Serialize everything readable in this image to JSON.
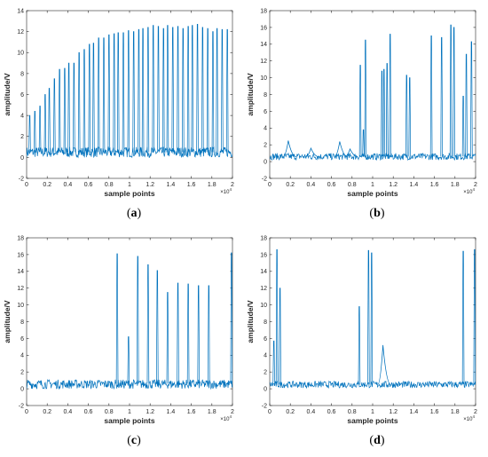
{
  "figure": {
    "accent_color": "#0072BD",
    "axis_color": "#262626"
  },
  "chart_data": [
    {
      "type": "line",
      "panel_label": "a",
      "caption": "(a)",
      "xlabel": "sample points",
      "ylabel": "amplitude/V",
      "x_exponent": "×10",
      "x_exponent_power": "4",
      "xlim": [
        0,
        2
      ],
      "ylim": [
        -2,
        14
      ],
      "xticks": [
        "0",
        "0.2",
        "0.4",
        "0.6",
        "0.8",
        "1",
        "1.2",
        "1.4",
        "1.6",
        "1.8",
        "2"
      ],
      "yticks": [
        "-2",
        "0",
        "2",
        "4",
        "6",
        "8",
        "10",
        "12",
        "14"
      ],
      "baseline": 0.5,
      "baseline_band": [
        0.0,
        1.0
      ],
      "spikes": [
        {
          "x": 0.03,
          "y": 4.0
        },
        {
          "x": 0.08,
          "y": 4.4
        },
        {
          "x": 0.13,
          "y": 4.9
        },
        {
          "x": 0.18,
          "y": 6.0
        },
        {
          "x": 0.22,
          "y": 6.6
        },
        {
          "x": 0.27,
          "y": 7.5
        },
        {
          "x": 0.32,
          "y": 8.4
        },
        {
          "x": 0.37,
          "y": 8.5
        },
        {
          "x": 0.41,
          "y": 9.0
        },
        {
          "x": 0.46,
          "y": 9.0
        },
        {
          "x": 0.51,
          "y": 10.0
        },
        {
          "x": 0.56,
          "y": 10.3
        },
        {
          "x": 0.61,
          "y": 10.8
        },
        {
          "x": 0.65,
          "y": 10.9
        },
        {
          "x": 0.7,
          "y": 11.4
        },
        {
          "x": 0.75,
          "y": 11.4
        },
        {
          "x": 0.8,
          "y": 11.7
        },
        {
          "x": 0.85,
          "y": 11.8
        },
        {
          "x": 0.89,
          "y": 11.9
        },
        {
          "x": 0.94,
          "y": 11.9
        },
        {
          "x": 0.99,
          "y": 12.1
        },
        {
          "x": 1.04,
          "y": 12.0
        },
        {
          "x": 1.09,
          "y": 12.2
        },
        {
          "x": 1.13,
          "y": 12.3
        },
        {
          "x": 1.18,
          "y": 12.4
        },
        {
          "x": 1.23,
          "y": 12.6
        },
        {
          "x": 1.28,
          "y": 12.5
        },
        {
          "x": 1.33,
          "y": 12.3
        },
        {
          "x": 1.37,
          "y": 12.6
        },
        {
          "x": 1.42,
          "y": 12.4
        },
        {
          "x": 1.47,
          "y": 12.5
        },
        {
          "x": 1.52,
          "y": 12.3
        },
        {
          "x": 1.57,
          "y": 12.5
        },
        {
          "x": 1.61,
          "y": 12.6
        },
        {
          "x": 1.66,
          "y": 12.7
        },
        {
          "x": 1.71,
          "y": 12.4
        },
        {
          "x": 1.76,
          "y": 12.3
        },
        {
          "x": 1.81,
          "y": 12.0
        },
        {
          "x": 1.85,
          "y": 12.3
        },
        {
          "x": 1.9,
          "y": 12.2
        },
        {
          "x": 1.95,
          "y": 12.2
        }
      ]
    },
    {
      "type": "line",
      "panel_label": "b",
      "caption": "(b)",
      "xlabel": "sample points",
      "ylabel": "amplitude/V",
      "x_exponent": "×10",
      "x_exponent_power": "4",
      "xlim": [
        0,
        2
      ],
      "ylim": [
        -2,
        18
      ],
      "xticks": [
        "0",
        "0.2",
        "0.4",
        "0.6",
        "0.8",
        "1",
        "1.2",
        "1.4",
        "1.6",
        "1.8",
        "2"
      ],
      "yticks": [
        "-2",
        "0",
        "2",
        "4",
        "6",
        "8",
        "10",
        "12",
        "14",
        "16",
        "18"
      ],
      "baseline": 0.6,
      "baseline_band": [
        0.2,
        1.0
      ],
      "bumps": [
        {
          "x": 0.18,
          "y": 2.5
        },
        {
          "x": 0.4,
          "y": 1.6
        },
        {
          "x": 0.68,
          "y": 2.4
        },
        {
          "x": 0.78,
          "y": 1.5
        }
      ],
      "spikes": [
        {
          "x": 0.88,
          "y": 11.5
        },
        {
          "x": 0.91,
          "y": 3.8
        },
        {
          "x": 0.93,
          "y": 14.5
        },
        {
          "x": 1.09,
          "y": 10.8
        },
        {
          "x": 1.11,
          "y": 11.0
        },
        {
          "x": 1.14,
          "y": 11.7
        },
        {
          "x": 1.17,
          "y": 15.2
        },
        {
          "x": 1.33,
          "y": 10.3
        },
        {
          "x": 1.36,
          "y": 10.0
        },
        {
          "x": 1.57,
          "y": 15.0
        },
        {
          "x": 1.67,
          "y": 14.8
        },
        {
          "x": 1.76,
          "y": 16.3
        },
        {
          "x": 1.79,
          "y": 16.0
        },
        {
          "x": 1.88,
          "y": 7.8
        },
        {
          "x": 1.91,
          "y": 12.8
        },
        {
          "x": 1.96,
          "y": 14.3
        }
      ]
    },
    {
      "type": "line",
      "panel_label": "c",
      "caption": "(c)",
      "xlabel": "sample points",
      "ylabel": "amplitude/V",
      "x_exponent": "×10",
      "x_exponent_power": "4",
      "xlim": [
        0,
        2
      ],
      "ylim": [
        -2,
        18
      ],
      "xticks": [
        "0",
        "0.2",
        "0.4",
        "0.6",
        "0.8",
        "1",
        "1.2",
        "1.4",
        "1.6",
        "1.8",
        "2"
      ],
      "yticks": [
        "-2",
        "0",
        "2",
        "4",
        "6",
        "8",
        "10",
        "12",
        "14",
        "16",
        "18"
      ],
      "baseline": 0.6,
      "baseline_band": [
        0.0,
        1.1
      ],
      "bumps": [],
      "spikes": [
        {
          "x": 0.88,
          "y": 16.1
        },
        {
          "x": 0.99,
          "y": 6.2
        },
        {
          "x": 1.08,
          "y": 15.8
        },
        {
          "x": 1.18,
          "y": 14.8
        },
        {
          "x": 1.27,
          "y": 14.1
        },
        {
          "x": 1.37,
          "y": 11.5
        },
        {
          "x": 1.47,
          "y": 12.6
        },
        {
          "x": 1.57,
          "y": 12.5
        },
        {
          "x": 1.67,
          "y": 12.3
        },
        {
          "x": 1.77,
          "y": 12.3
        },
        {
          "x": 1.99,
          "y": 16.2
        }
      ]
    },
    {
      "type": "line",
      "panel_label": "d",
      "caption": "(d)",
      "xlabel": "sample points",
      "ylabel": "amplitude/V",
      "x_exponent": "×10",
      "x_exponent_power": "4",
      "xlim": [
        0,
        2
      ],
      "ylim": [
        -2,
        18
      ],
      "xticks": [
        "0",
        "0.2",
        "0.4",
        "0.6",
        "0.8",
        "1",
        "1.2",
        "1.4",
        "1.6",
        "1.8",
        "2"
      ],
      "yticks": [
        "-2",
        "0",
        "2",
        "4",
        "6",
        "8",
        "10",
        "12",
        "14",
        "16",
        "18"
      ],
      "baseline": 0.5,
      "baseline_band": [
        0.1,
        0.9
      ],
      "bumps": [
        {
          "x": 1.1,
          "y": 5.2
        }
      ],
      "spikes": [
        {
          "x": 0.04,
          "y": 5.7
        },
        {
          "x": 0.07,
          "y": 16.6
        },
        {
          "x": 0.1,
          "y": 12.0
        },
        {
          "x": 0.87,
          "y": 9.8
        },
        {
          "x": 0.96,
          "y": 16.5
        },
        {
          "x": 0.99,
          "y": 16.2
        },
        {
          "x": 1.88,
          "y": 16.4
        },
        {
          "x": 1.99,
          "y": 16.6
        }
      ]
    }
  ]
}
